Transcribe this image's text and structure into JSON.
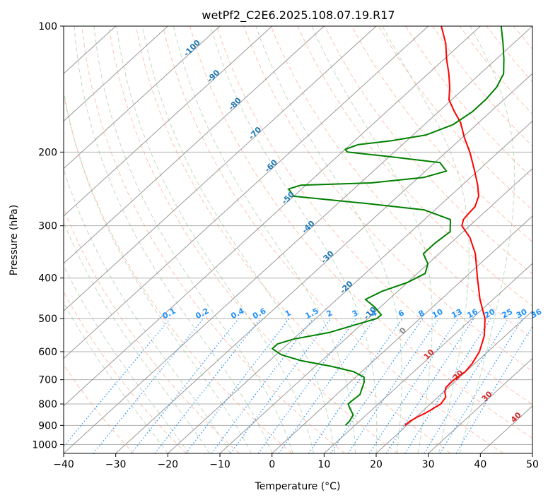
{
  "chart_data": {
    "type": "line",
    "chart_kind": "skew-t log-p sounding",
    "title": "wetPf2_C2E6.2025.108.07.19.R17",
    "xlabel": "Temperature (°C)",
    "ylabel": "Pressure (hPa)",
    "xlim": [
      -40,
      50
    ],
    "ylim": [
      1050,
      100
    ],
    "y_scale": "log",
    "grid": true,
    "x_ticks": [
      -40,
      -30,
      -20,
      -10,
      0,
      10,
      20,
      30,
      40,
      50
    ],
    "x_tick_labels": [
      "−40",
      "−30",
      "−20",
      "−10",
      "0",
      "10",
      "20",
      "30",
      "40",
      "50"
    ],
    "y_ticks": [
      100,
      200,
      300,
      400,
      500,
      600,
      700,
      800,
      900,
      1000
    ],
    "y_tick_labels": [
      "100",
      "200",
      "300",
      "400",
      "500",
      "600",
      "700",
      "800",
      "900",
      "1000"
    ],
    "series": [
      {
        "color": "#ff0000",
        "kind": "temperature",
        "points": [
          {
            "p": 900,
            "t": 19.6
          },
          {
            "p": 880,
            "t": 19.7
          },
          {
            "p": 860,
            "t": 20.2
          },
          {
            "p": 840,
            "t": 21.0
          },
          {
            "p": 800,
            "t": 22.0
          },
          {
            "p": 770,
            "t": 21.5
          },
          {
            "p": 750,
            "t": 20.3
          },
          {
            "p": 730,
            "t": 19.5
          },
          {
            "p": 700,
            "t": 19.4
          },
          {
            "p": 670,
            "t": 19.9
          },
          {
            "p": 640,
            "t": 19.5
          },
          {
            "p": 600,
            "t": 18.4
          },
          {
            "p": 550,
            "t": 16.0
          },
          {
            "p": 500,
            "t": 12.5
          },
          {
            "p": 450,
            "t": 7.5
          },
          {
            "p": 400,
            "t": 2.5
          },
          {
            "p": 350,
            "t": -3.0
          },
          {
            "p": 320,
            "t": -7.5
          },
          {
            "p": 300,
            "t": -11.5
          },
          {
            "p": 290,
            "t": -12.5
          },
          {
            "p": 280,
            "t": -12.8
          },
          {
            "p": 270,
            "t": -13.0
          },
          {
            "p": 255,
            "t": -14.5
          },
          {
            "p": 240,
            "t": -17.0
          },
          {
            "p": 220,
            "t": -21.0
          },
          {
            "p": 200,
            "t": -25.5
          },
          {
            "p": 185,
            "t": -29.5
          },
          {
            "p": 170,
            "t": -33.5
          },
          {
            "p": 160,
            "t": -37.0
          },
          {
            "p": 150,
            "t": -40.5
          },
          {
            "p": 140,
            "t": -43.0
          },
          {
            "p": 130,
            "t": -46.0
          },
          {
            "p": 120,
            "t": -49.5
          },
          {
            "p": 110,
            "t": -53.0
          },
          {
            "p": 100,
            "t": -57.5
          }
        ]
      },
      {
        "color": "#008000",
        "kind": "dewpoint",
        "points": [
          {
            "p": 900,
            "t": 8.2
          },
          {
            "p": 880,
            "t": 8.1
          },
          {
            "p": 850,
            "t": 7.5
          },
          {
            "p": 820,
            "t": 5.5
          },
          {
            "p": 800,
            "t": 4.2
          },
          {
            "p": 780,
            "t": 4.3
          },
          {
            "p": 760,
            "t": 4.5
          },
          {
            "p": 740,
            "t": 3.8
          },
          {
            "p": 710,
            "t": 2.7
          },
          {
            "p": 690,
            "t": 1.6
          },
          {
            "p": 670,
            "t": -1.5
          },
          {
            "p": 650,
            "t": -7.0
          },
          {
            "p": 630,
            "t": -14.0
          },
          {
            "p": 610,
            "t": -19.0
          },
          {
            "p": 590,
            "t": -22.0
          },
          {
            "p": 575,
            "t": -22.0
          },
          {
            "p": 560,
            "t": -20.0
          },
          {
            "p": 540,
            "t": -14.5
          },
          {
            "p": 520,
            "t": -11.5
          },
          {
            "p": 500,
            "t": -8.3
          },
          {
            "p": 490,
            "t": -8.2
          },
          {
            "p": 470,
            "t": -11.0
          },
          {
            "p": 450,
            "t": -14.5
          },
          {
            "p": 430,
            "t": -13.0
          },
          {
            "p": 410,
            "t": -10.0
          },
          {
            "p": 390,
            "t": -8.5
          },
          {
            "p": 370,
            "t": -10.0
          },
          {
            "p": 350,
            "t": -13.0
          },
          {
            "p": 330,
            "t": -13.0
          },
          {
            "p": 310,
            "t": -12.5
          },
          {
            "p": 290,
            "t": -15.0
          },
          {
            "p": 275,
            "t": -22.0
          },
          {
            "p": 265,
            "t": -35.0
          },
          {
            "p": 255,
            "t": -50.0
          },
          {
            "p": 245,
            "t": -52.5
          },
          {
            "p": 240,
            "t": -51.0
          },
          {
            "p": 237,
            "t": -38.0
          },
          {
            "p": 230,
            "t": -29.0
          },
          {
            "p": 222,
            "t": -26.0
          },
          {
            "p": 212,
            "t": -29.0
          },
          {
            "p": 205,
            "t": -40.0
          },
          {
            "p": 200,
            "t": -49.0
          },
          {
            "p": 197,
            "t": -50.0
          },
          {
            "p": 192,
            "t": -48.5
          },
          {
            "p": 188,
            "t": -43.0
          },
          {
            "p": 182,
            "t": -37.5
          },
          {
            "p": 172,
            "t": -34.5
          },
          {
            "p": 160,
            "t": -33.5
          },
          {
            "p": 150,
            "t": -33.5
          },
          {
            "p": 140,
            "t": -34.0
          },
          {
            "p": 130,
            "t": -35.5
          },
          {
            "p": 120,
            "t": -38.5
          },
          {
            "p": 110,
            "t": -42.0
          },
          {
            "p": 100,
            "t": -46.0
          }
        ]
      }
    ],
    "background_lines": {
      "isotherms_color": "#999999",
      "dry_adiabats_color": "#ff9070",
      "moist_adiabats_color": "#70b070",
      "mixing_ratio_color": "#1e90ff"
    },
    "mixing_ratio_labels": [
      "0.1",
      "0.2",
      "0.4",
      "0.6",
      "1",
      "1.5",
      "2",
      "3",
      "4",
      "6",
      "8",
      "10",
      "13",
      "16",
      "20",
      "25",
      "30",
      "36"
    ],
    "mixing_ratio_values": [
      0.1,
      0.2,
      0.4,
      0.6,
      1,
      1.5,
      2,
      3,
      4,
      6,
      8,
      10,
      13,
      16,
      20,
      25,
      30,
      36
    ],
    "mixing_ratio_label_color": "#1e90ff",
    "isotherm_labels_blue": [
      {
        "text": "-100",
        "t": -100,
        "p": 114
      },
      {
        "text": "-90",
        "t": -90,
        "p": 133
      },
      {
        "text": "-80",
        "t": -80,
        "p": 155
      },
      {
        "text": "-70",
        "t": -70,
        "p": 182
      },
      {
        "text": "-60",
        "t": -60,
        "p": 218
      },
      {
        "text": "-50",
        "t": -50,
        "p": 260
      },
      {
        "text": "-40",
        "t": -40,
        "p": 305
      },
      {
        "text": "-30",
        "t": -30,
        "p": 360
      },
      {
        "text": "-20",
        "t": -20,
        "p": 425
      },
      {
        "text": "-10",
        "t": -10,
        "p": 490
      }
    ],
    "isotherm_label_color_blue": "#1f77b4",
    "isotherm_labels_red": [
      {
        "text": "0",
        "t": 0,
        "p": 540
      },
      {
        "text": "10",
        "t": 10,
        "p": 615
      },
      {
        "text": "20",
        "t": 20,
        "p": 690
      },
      {
        "text": "30",
        "t": 30,
        "p": 775
      },
      {
        "text": "40",
        "t": 40,
        "p": 870
      }
    ],
    "isotherm_label_color_red": "#d62728",
    "isotherm_label_color_zero": "#888888"
  }
}
